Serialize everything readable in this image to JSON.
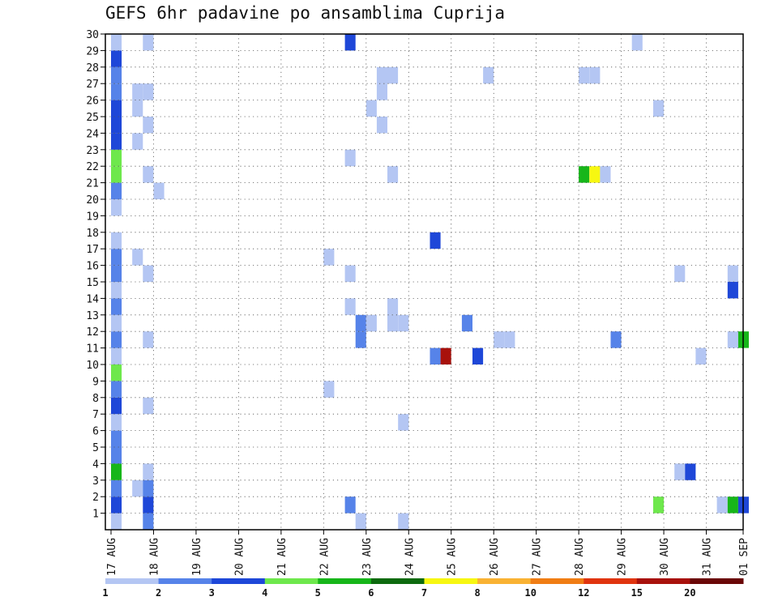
{
  "chart_data": {
    "type": "heatmap",
    "title": "GEFS 6hr padavine po ansamblima Cuprija",
    "x_tick_labels": [
      "17 AUG",
      "18 AUG",
      "19 AUG",
      "20 AUG",
      "21 AUG",
      "22 AUG",
      "23 AUG",
      "24 AUG",
      "25 AUG",
      "26 AUG",
      "27 AUG",
      "28 AUG",
      "29 AUG",
      "30 AUG",
      "31 AUG",
      "01 SEP"
    ],
    "y_tick_labels": [
      "1",
      "2",
      "3",
      "4",
      "5",
      "6",
      "7",
      "8",
      "9",
      "10",
      "11",
      "12",
      "13",
      "14",
      "15",
      "16",
      "17",
      "18",
      "19",
      "20",
      "21",
      "22",
      "23",
      "24",
      "25",
      "26",
      "27",
      "28",
      "29",
      "30"
    ],
    "ylim": [
      0,
      30
    ],
    "grid": true,
    "legend_placement": "bottom",
    "colorbar": {
      "boundaries": [
        "1",
        "2",
        "3",
        "4",
        "5",
        "6",
        "7",
        "8",
        "10",
        "12",
        "15",
        "20"
      ],
      "colors": [
        "#b4c6f3",
        "#5683e9",
        "#1e47d8",
        "#6ee84c",
        "#17b61a",
        "#0d6a0e",
        "#f7f711",
        "#f9b233",
        "#f07d14",
        "#e0340f",
        "#a8110c",
        "#6a0707"
      ]
    },
    "cells": [
      {
        "member": 0,
        "step": 0,
        "c": 0
      },
      {
        "member": 1,
        "step": 0,
        "c": 2
      },
      {
        "member": 2,
        "step": 0,
        "c": 1
      },
      {
        "member": 3,
        "step": 0,
        "c": 4
      },
      {
        "member": 4,
        "step": 0,
        "c": 1
      },
      {
        "member": 5,
        "step": 0,
        "c": 1
      },
      {
        "member": 6,
        "step": 0,
        "c": 0
      },
      {
        "member": 7,
        "step": 0,
        "c": 2
      },
      {
        "member": 8,
        "step": 0,
        "c": 1
      },
      {
        "member": 9,
        "step": 0,
        "c": 3
      },
      {
        "member": 10,
        "step": 0,
        "c": 0
      },
      {
        "member": 11,
        "step": 0,
        "c": 1
      },
      {
        "member": 12,
        "step": 0,
        "c": 0
      },
      {
        "member": 13,
        "step": 0,
        "c": 1
      },
      {
        "member": 14,
        "step": 0,
        "c": 0
      },
      {
        "member": 15,
        "step": 0,
        "c": 1
      },
      {
        "member": 16,
        "step": 0,
        "c": 1
      },
      {
        "member": 17,
        "step": 0,
        "c": 0
      },
      {
        "member": 19,
        "step": 0,
        "c": 0
      },
      {
        "member": 20,
        "step": 0,
        "c": 1
      },
      {
        "member": 21,
        "step": 0,
        "c": 3
      },
      {
        "member": 22,
        "step": 0,
        "c": 3
      },
      {
        "member": 23,
        "step": 0,
        "c": 2
      },
      {
        "member": 24,
        "step": 0,
        "c": 2
      },
      {
        "member": 25,
        "step": 0,
        "c": 2
      },
      {
        "member": 26,
        "step": 0,
        "c": 1
      },
      {
        "member": 27,
        "step": 0,
        "c": 1
      },
      {
        "member": 28,
        "step": 0,
        "c": 2
      },
      {
        "member": 29,
        "step": 0,
        "c": 0
      },
      {
        "member": 2,
        "step": 2,
        "c": 0
      },
      {
        "member": 26,
        "step": 2,
        "c": 0
      },
      {
        "member": 23,
        "step": 2,
        "c": 0
      },
      {
        "member": 25,
        "step": 2,
        "c": 0
      },
      {
        "member": 16,
        "step": 2,
        "c": 0
      },
      {
        "member": 1,
        "step": 3,
        "c": 2
      },
      {
        "member": 0,
        "step": 3,
        "c": 1
      },
      {
        "member": 2,
        "step": 3,
        "c": 1
      },
      {
        "member": 3,
        "step": 3,
        "c": 0
      },
      {
        "member": 7,
        "step": 3,
        "c": 0
      },
      {
        "member": 11,
        "step": 3,
        "c": 0
      },
      {
        "member": 15,
        "step": 3,
        "c": 0
      },
      {
        "member": 21,
        "step": 3,
        "c": 0
      },
      {
        "member": 24,
        "step": 3,
        "c": 0
      },
      {
        "member": 26,
        "step": 3,
        "c": 0
      },
      {
        "member": 29,
        "step": 3,
        "c": 0
      },
      {
        "member": 20,
        "step": 4,
        "c": 0
      },
      {
        "member": 16,
        "step": 20,
        "c": 0
      },
      {
        "member": 8,
        "step": 20,
        "c": 0
      },
      {
        "member": 1,
        "step": 22,
        "c": 1
      },
      {
        "member": 13,
        "step": 22,
        "c": 0
      },
      {
        "member": 15,
        "step": 22,
        "c": 0
      },
      {
        "member": 22,
        "step": 22,
        "c": 0
      },
      {
        "member": 29,
        "step": 22,
        "c": 2
      },
      {
        "member": 0,
        "step": 23,
        "c": 0
      },
      {
        "member": 11,
        "step": 23,
        "c": 1
      },
      {
        "member": 12,
        "step": 23,
        "c": 1
      },
      {
        "member": 12,
        "step": 24,
        "c": 0
      },
      {
        "member": 25,
        "step": 24,
        "c": 0
      },
      {
        "member": 26,
        "step": 25,
        "c": 0
      },
      {
        "member": 24,
        "step": 25,
        "c": 0
      },
      {
        "member": 27,
        "step": 25,
        "c": 0
      },
      {
        "member": 27,
        "step": 26,
        "c": 0
      },
      {
        "member": 12,
        "step": 26,
        "c": 0
      },
      {
        "member": 13,
        "step": 26,
        "c": 0
      },
      {
        "member": 12,
        "step": 27,
        "c": 0
      },
      {
        "member": 21,
        "step": 26,
        "c": 0
      },
      {
        "member": 6,
        "step": 27,
        "c": 0
      },
      {
        "member": 0,
        "step": 27,
        "c": 0
      },
      {
        "member": 10,
        "step": 30,
        "c": 1
      },
      {
        "member": 17,
        "step": 30,
        "c": 2
      },
      {
        "member": 10,
        "step": 31,
        "c": 10
      },
      {
        "member": 12,
        "step": 33,
        "c": 1
      },
      {
        "member": 10,
        "step": 34,
        "c": 2
      },
      {
        "member": 11,
        "step": 36,
        "c": 0
      },
      {
        "member": 11,
        "step": 37,
        "c": 0
      },
      {
        "member": 27,
        "step": 35,
        "c": 0
      },
      {
        "member": 27,
        "step": 44,
        "c": 0
      },
      {
        "member": 27,
        "step": 45,
        "c": 0
      },
      {
        "member": 21,
        "step": 44,
        "c": 4
      },
      {
        "member": 21,
        "step": 45,
        "c": 6
      },
      {
        "member": 21,
        "step": 46,
        "c": 0
      },
      {
        "member": 11,
        "step": 47,
        "c": 1
      },
      {
        "member": 29,
        "step": 49,
        "c": 0
      },
      {
        "member": 1,
        "step": 51,
        "c": 3
      },
      {
        "member": 25,
        "step": 51,
        "c": 0
      },
      {
        "member": 15,
        "step": 53,
        "c": 0
      },
      {
        "member": 3,
        "step": 53,
        "c": 0
      },
      {
        "member": 3,
        "step": 54,
        "c": 2
      },
      {
        "member": 10,
        "step": 55,
        "c": 0
      },
      {
        "member": 1,
        "step": 57,
        "c": 0
      },
      {
        "member": 11,
        "step": 58,
        "c": 0
      },
      {
        "member": 15,
        "step": 58,
        "c": 0
      },
      {
        "member": 14,
        "step": 58,
        "c": 2
      },
      {
        "member": 1,
        "step": 58,
        "c": 4
      },
      {
        "member": 11,
        "step": 59,
        "c": 4
      },
      {
        "member": 1,
        "step": 59,
        "c": 2
      }
    ]
  }
}
